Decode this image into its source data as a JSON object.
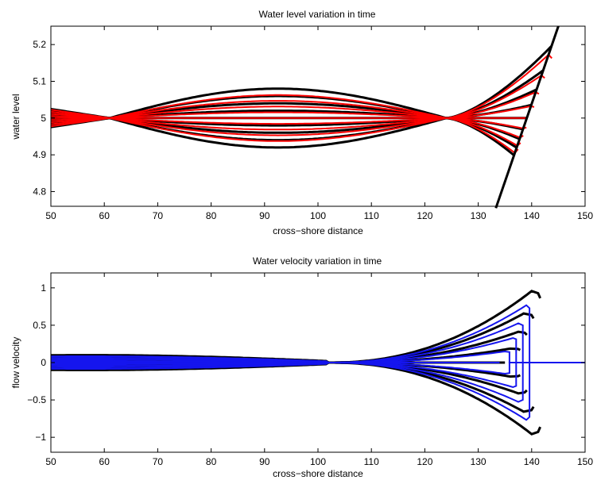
{
  "chart_data": [
    {
      "type": "line",
      "title": "Water level variation in time",
      "xlabel": "cross−shore distance",
      "ylabel": "water level",
      "xlim": [
        50,
        150
      ],
      "ylim": [
        4.76,
        5.25
      ],
      "xticks": [
        50,
        60,
        70,
        80,
        90,
        100,
        110,
        120,
        130,
        140,
        150
      ],
      "xtick_labels": [
        "50",
        "60",
        "70",
        "80",
        "90",
        "100",
        "110",
        "120",
        "130",
        "140",
        "150"
      ],
      "yticks": [
        4.8,
        4.9,
        5.0,
        5.1,
        5.2
      ],
      "ytick_labels": [
        "4.8",
        "4.9",
        "5",
        "5.1",
        "5.2"
      ],
      "grid": false,
      "legend": "none",
      "node1_x": 61,
      "node2_x": 124,
      "amplitudes": [
        -1.0,
        -0.75,
        -0.5,
        -0.25,
        0.0,
        0.25,
        0.5,
        0.75,
        1.0
      ],
      "shoreline": {
        "x": [
          133.3,
          145.0
        ],
        "y": [
          4.755,
          5.25
        ]
      },
      "series_styles": [
        {
          "color": "#000000",
          "width": 3
        },
        {
          "color": "#ff0000",
          "width": 2
        }
      ]
    },
    {
      "type": "line",
      "title": "Water velocity variation in time",
      "xlabel": "cross−shore distance",
      "ylabel": "flow velocity",
      "xlim": [
        50,
        150
      ],
      "ylim": [
        -1.2,
        1.2
      ],
      "xticks": [
        50,
        60,
        70,
        80,
        90,
        100,
        110,
        120,
        130,
        140,
        150
      ],
      "xtick_labels": [
        "50",
        "60",
        "70",
        "80",
        "90",
        "100",
        "110",
        "120",
        "130",
        "140",
        "150"
      ],
      "yticks": [
        -1,
        -0.5,
        0,
        0.5,
        1
      ],
      "ytick_labels": [
        "−1",
        "−0.5",
        "0",
        "0.5",
        "1"
      ],
      "grid": false,
      "legend": "none",
      "node_x": 102,
      "amplitudes": [
        -1.0,
        -0.75,
        -0.5,
        -0.25,
        0.0,
        0.25,
        0.5,
        0.75,
        1.0
      ],
      "series_styles": [
        {
          "color": "#000000",
          "width": 3
        },
        {
          "color": "#1515ee",
          "width": 2
        }
      ]
    }
  ]
}
